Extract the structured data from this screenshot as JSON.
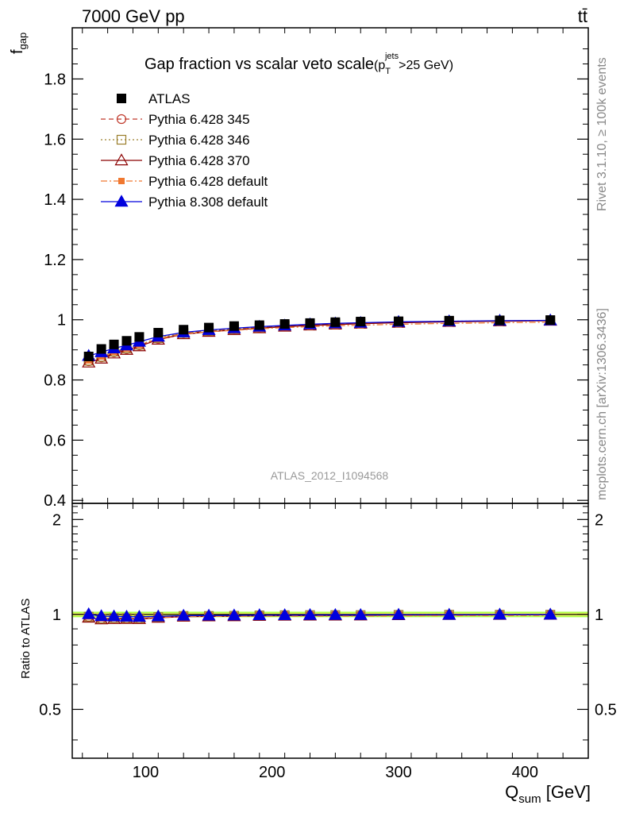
{
  "header": {
    "left": "7000 GeV pp",
    "right": "tt̄"
  },
  "side_labels": {
    "rivet": "Rivet 3.1.10, ≥ 100k events",
    "mcplots": "mcplots.cern.ch [arXiv:1306.3436]"
  },
  "colors": {
    "atlas": "#000000",
    "p345": "#c0392b",
    "p346": "#9a7d2a",
    "p370": "#8b0000",
    "p6default": "#f07830",
    "p8default": "#0000dd",
    "band_inner": "#ffff66",
    "band_outer": "#aaff44"
  },
  "chart_data": [
    {
      "type": "scatter",
      "title": "Gap fraction vs scalar veto scale",
      "title_suffix": {
        "base": "(p",
        "sup": "jets",
        "sub": "T",
        "tail": ">25 GeV)"
      },
      "ylabel": "f",
      "ylabel_sub": "gap",
      "xlim": [
        42,
        450
      ],
      "ylim": [
        0.39,
        1.97
      ],
      "yticks": [
        0.4,
        0.6,
        0.8,
        1,
        1.2,
        1.4,
        1.6,
        1.8
      ],
      "ytick_labels": [
        "0.4",
        "0.6",
        "0.8",
        "1",
        "1.2",
        "1.4",
        "1.6",
        "1.8"
      ],
      "watermark": "ATLAS_2012_I1094568",
      "legend_position": "top-left",
      "x": [
        55,
        65,
        75,
        85,
        95,
        110,
        130,
        150,
        170,
        190,
        210,
        230,
        250,
        270,
        300,
        340,
        380,
        420
      ],
      "series": [
        {
          "name": "ATLAS",
          "marker": "square-filled",
          "line": "none",
          "color": "#000000",
          "values": [
            0.878,
            0.903,
            0.918,
            0.93,
            0.943,
            0.957,
            0.967,
            0.974,
            0.979,
            0.982,
            0.986,
            0.989,
            0.992,
            0.994,
            0.995,
            0.997,
            0.998,
            0.999
          ]
        },
        {
          "name": "Pythia 6.428 345",
          "marker": "circle-open",
          "line": "dashed",
          "color": "#c0392b",
          "values": [
            0.862,
            0.875,
            0.892,
            0.903,
            0.915,
            0.937,
            0.955,
            0.962,
            0.968,
            0.974,
            0.979,
            0.983,
            0.986,
            0.988,
            0.991,
            0.994,
            0.996,
            0.997
          ]
        },
        {
          "name": "Pythia 6.428 346",
          "marker": "square-open",
          "line": "dotted",
          "color": "#9a7d2a",
          "values": [
            0.864,
            0.877,
            0.894,
            0.905,
            0.917,
            0.939,
            0.956,
            0.963,
            0.969,
            0.975,
            0.98,
            0.984,
            0.987,
            0.989,
            0.992,
            0.995,
            0.996,
            0.997
          ]
        },
        {
          "name": "Pythia 6.428 370",
          "marker": "triangle-open",
          "line": "solid",
          "color": "#8b0000",
          "values": [
            0.858,
            0.871,
            0.888,
            0.9,
            0.912,
            0.934,
            0.952,
            0.96,
            0.966,
            0.972,
            0.977,
            0.981,
            0.984,
            0.987,
            0.99,
            0.993,
            0.995,
            0.997
          ]
        },
        {
          "name": "Pythia 6.428 default",
          "marker": "square-filled-small",
          "line": "dashdot",
          "color": "#f07830",
          "values": [
            0.865,
            0.878,
            0.893,
            0.904,
            0.916,
            0.936,
            0.953,
            0.96,
            0.965,
            0.97,
            0.974,
            0.977,
            0.98,
            0.982,
            0.985,
            0.988,
            0.99,
            0.992
          ]
        },
        {
          "name": "Pythia 8.308 default",
          "marker": "triangle-filled",
          "line": "solid",
          "color": "#0000dd",
          "values": [
            0.88,
            0.892,
            0.905,
            0.915,
            0.927,
            0.944,
            0.958,
            0.966,
            0.972,
            0.977,
            0.981,
            0.985,
            0.988,
            0.99,
            0.993,
            0.995,
            0.997,
            0.998
          ]
        }
      ]
    },
    {
      "type": "scatter",
      "ylabel": "Ratio to ATLAS",
      "xlabel": "Q",
      "xlabel_sub": "sum",
      "xlabel_unit": " [GeV]",
      "xlim": [
        42,
        450
      ],
      "ylim": [
        0.35,
        2.25
      ],
      "log_y": true,
      "yticks": [
        0.5,
        1,
        2
      ],
      "ytick_labels": [
        "0.5",
        "1",
        "2"
      ],
      "xticks": [
        100,
        200,
        300,
        400
      ],
      "xtick_labels": [
        "100",
        "200",
        "300",
        "400"
      ],
      "x": [
        55,
        65,
        75,
        85,
        95,
        110,
        130,
        150,
        170,
        190,
        210,
        230,
        250,
        270,
        300,
        340,
        380,
        420
      ],
      "band": {
        "inner": 0.01,
        "outer": 0.02
      },
      "series": [
        {
          "name": "Pythia 6.428 345",
          "values": [
            0.982,
            0.969,
            0.972,
            0.971,
            0.97,
            0.979,
            0.988,
            0.988,
            0.989,
            0.992,
            0.993,
            0.994,
            0.994,
            0.994,
            0.996,
            0.997,
            0.998,
            0.998
          ]
        },
        {
          "name": "Pythia 6.428 346",
          "values": [
            0.984,
            0.971,
            0.974,
            0.973,
            0.972,
            0.981,
            0.989,
            0.989,
            0.99,
            0.993,
            0.994,
            0.995,
            0.995,
            0.995,
            0.997,
            0.998,
            0.998,
            0.998
          ]
        },
        {
          "name": "Pythia 6.428 370",
          "values": [
            0.977,
            0.965,
            0.967,
            0.968,
            0.967,
            0.976,
            0.984,
            0.986,
            0.987,
            0.99,
            0.991,
            0.992,
            0.992,
            0.993,
            0.995,
            0.996,
            0.997,
            0.998
          ]
        },
        {
          "name": "Pythia 6.428 default",
          "values": [
            0.985,
            0.972,
            0.973,
            0.972,
            0.971,
            0.978,
            0.986,
            0.986,
            0.986,
            0.988,
            0.988,
            0.988,
            0.988,
            0.988,
            0.99,
            0.991,
            0.992,
            0.993
          ]
        },
        {
          "name": "Pythia 8.308 default",
          "values": [
            1.002,
            0.988,
            0.986,
            0.984,
            0.983,
            0.986,
            0.991,
            0.992,
            0.993,
            0.995,
            0.995,
            0.996,
            0.996,
            0.996,
            0.998,
            0.998,
            0.999,
            0.999
          ]
        }
      ]
    }
  ]
}
